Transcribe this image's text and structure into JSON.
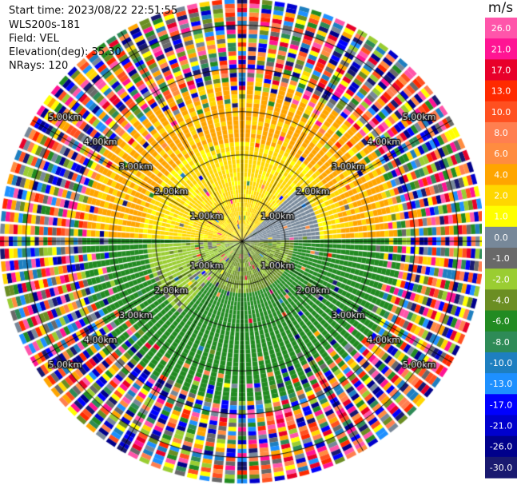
{
  "header": {
    "start_time": "Start time: 2023/08/22 22:51:55",
    "instrument": "WLS200s-181",
    "field": "Field: VEL",
    "elevation": "Elevation(deg): 35.30",
    "nrays": "NRays: 120"
  },
  "chart_data": {
    "type": "heatmap",
    "projection": "polar-ppi",
    "field": "VEL",
    "units": "m/s",
    "n_rays": 120,
    "range_rings_km": [
      1.0,
      2.0,
      3.0,
      4.0,
      5.0
    ],
    "range_ring_labels": [
      "1.00km",
      "2.00km",
      "3.00km",
      "4.00km",
      "5.00km"
    ],
    "max_range_km": 5.6,
    "colorbar": {
      "unit": "m/s",
      "ticks": [
        "26.0",
        "21.0",
        "17.0",
        "13.0",
        "10.0",
        "8.0",
        "6.0",
        "4.0",
        "2.0",
        "1.0",
        "0.0",
        "-1.0",
        "-2.0",
        "-4.0",
        "-6.0",
        "-8.0",
        "-10.0",
        "-13.0",
        "-17.0",
        "-21.0",
        "-26.0",
        "-30.0"
      ],
      "bins": [
        {
          "min": 26,
          "max": 30,
          "color": "#ff55aa"
        },
        {
          "min": 21,
          "max": 26,
          "color": "#ff1493"
        },
        {
          "min": 17,
          "max": 21,
          "color": "#e8002a"
        },
        {
          "min": 13,
          "max": 17,
          "color": "#ff2a00"
        },
        {
          "min": 10,
          "max": 13,
          "color": "#ff5020"
        },
        {
          "min": 8,
          "max": 10,
          "color": "#ff7f50"
        },
        {
          "min": 6,
          "max": 8,
          "color": "#ff8c40"
        },
        {
          "min": 4,
          "max": 6,
          "color": "#ffa500"
        },
        {
          "min": 2,
          "max": 4,
          "color": "#ffd700"
        },
        {
          "min": 1,
          "max": 2,
          "color": "#ffff00"
        },
        {
          "min": 0,
          "max": 1,
          "color": "#778899"
        },
        {
          "min": -1,
          "max": 0,
          "color": "#696969"
        },
        {
          "min": -2,
          "max": -1,
          "color": "#9acd32"
        },
        {
          "min": -4,
          "max": -2,
          "color": "#6b8e23"
        },
        {
          "min": -6,
          "max": -4,
          "color": "#228b22"
        },
        {
          "min": -8,
          "max": -6,
          "color": "#2e8b57"
        },
        {
          "min": -10,
          "max": -8,
          "color": "#1e7fc0"
        },
        {
          "min": -13,
          "max": -10,
          "color": "#1e90ff"
        },
        {
          "min": -17,
          "max": -13,
          "color": "#0000ff"
        },
        {
          "min": -21,
          "max": -17,
          "color": "#0000cd"
        },
        {
          "min": -26,
          "max": -21,
          "color": "#00008b"
        },
        {
          "min": -30,
          "max": -26,
          "color": "#191970"
        }
      ]
    },
    "velocity_regions": [
      {
        "range_km": [
          0.0,
          3.6
        ],
        "azimuth_deg": [
          275,
          360
        ],
        "value": 3.0,
        "description": "north-west lobe mostly yellow/orange"
      },
      {
        "range_km": [
          0.0,
          3.6
        ],
        "azimuth_deg": [
          0,
          85
        ],
        "value": 3.0
      },
      {
        "range_km": [
          0.0,
          1.8
        ],
        "azimuth_deg": [
          45,
          100
        ],
        "value": 0.5
      },
      {
        "range_km": [
          0.0,
          3.6
        ],
        "azimuth_deg": [
          95,
          265
        ],
        "value": -5.0
      },
      {
        "range_km": [
          0.0,
          2.0
        ],
        "azimuth_deg": [
          200,
          270
        ],
        "value": -1.5
      },
      {
        "range_km": [
          3.6,
          5.6
        ],
        "azimuth_deg": [
          0,
          360
        ],
        "value": "noise"
      }
    ]
  }
}
